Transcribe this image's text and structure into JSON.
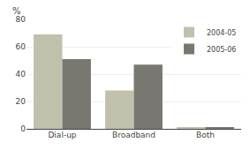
{
  "chart_data": {
    "type": "bar",
    "ylabel": "%",
    "categories": [
      "Dial-up",
      "Broadband",
      "Both"
    ],
    "series": [
      {
        "name": "2004-05",
        "color": "#c0c0ac",
        "values": [
          69,
          28,
          1
        ]
      },
      {
        "name": "2005-06",
        "color": "#787870",
        "values": [
          51,
          47,
          1
        ]
      }
    ],
    "ylim": [
      0,
      80
    ],
    "yticks": [
      0,
      20,
      40,
      60,
      80
    ],
    "grid": true,
    "legend": "upper right"
  }
}
